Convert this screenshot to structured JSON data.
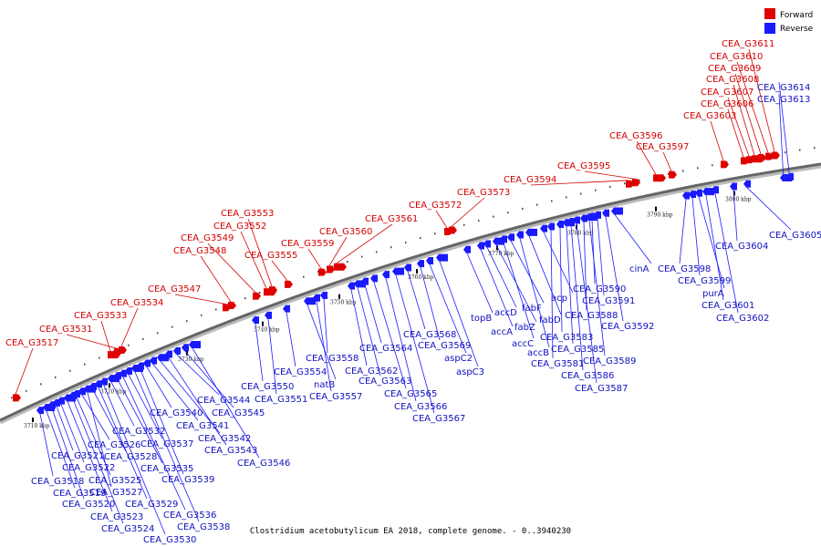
{
  "caption": "Clostridium acetobutylicum EA 2018, complete genome. - 0..3940230",
  "legend": [
    {
      "label": "Forward",
      "color": "#e00000"
    },
    {
      "label": "Reverse",
      "color": "#1a1aff"
    }
  ],
  "colors": {
    "forward": "#e00000",
    "reverse": "#1a1aff",
    "fwd_text": "#d40000",
    "rev_text": "#1010c0",
    "backbone": "#777777"
  },
  "scale_labels": [
    "3710 kbp",
    "3720 kbp",
    "3730 kbp",
    "3740 kbp",
    "3750 kbp",
    "3760 kbp",
    "3770 kbp",
    "3780 kbp",
    "3790 kbp",
    "3800 kbp"
  ],
  "forward_genes": [
    {
      "label": "CEA_G3517"
    },
    {
      "label": "CEA_G3531"
    },
    {
      "label": "CEA_G3533"
    },
    {
      "label": "CEA_G3534"
    },
    {
      "label": "CEA_G3547"
    },
    {
      "label": "CEA_G3548"
    },
    {
      "label": "CEA_G3549"
    },
    {
      "label": "CEA_G3552"
    },
    {
      "label": "CEA_G3553"
    },
    {
      "label": "CEA_G3555"
    },
    {
      "label": "CEA_G3559"
    },
    {
      "label": "CEA_G3560"
    },
    {
      "label": "CEA_G3561"
    },
    {
      "label": "CEA_G3572"
    },
    {
      "label": "CEA_G3573"
    },
    {
      "label": "CEA_G3594"
    },
    {
      "label": "CEA_G3595"
    },
    {
      "label": "CEA_G3596"
    },
    {
      "label": "CEA_G3597"
    },
    {
      "label": "CEA_G3603"
    },
    {
      "label": "CEA_G3606"
    },
    {
      "label": "CEA_G3607"
    },
    {
      "label": "CEA_G3608"
    },
    {
      "label": "CEA_G3609"
    },
    {
      "label": "CEA_G3610"
    },
    {
      "label": "CEA_G3611"
    }
  ],
  "reverse_genes": [
    {
      "label": "CEA_G3518"
    },
    {
      "label": "CEA_G3519"
    },
    {
      "label": "CEA_G3520"
    },
    {
      "label": "CEA_G3521"
    },
    {
      "label": "CEA_G3522"
    },
    {
      "label": "CEA_G3523"
    },
    {
      "label": "CEA_G3524"
    },
    {
      "label": "CEA_G3525"
    },
    {
      "label": "CEA_G3526"
    },
    {
      "label": "CEA_G3527"
    },
    {
      "label": "CEA_G3528"
    },
    {
      "label": "CEA_G3529"
    },
    {
      "label": "CEA_G3530"
    },
    {
      "label": "CEA_G3532"
    },
    {
      "label": "CEA_G3535"
    },
    {
      "label": "CEA_G3536"
    },
    {
      "label": "CEA_G3537"
    },
    {
      "label": "CEA_G3538"
    },
    {
      "label": "CEA_G3539"
    },
    {
      "label": "CEA_G3540"
    },
    {
      "label": "CEA_G3541"
    },
    {
      "label": "CEA_G3542"
    },
    {
      "label": "CEA_G3543"
    },
    {
      "label": "CEA_G3544"
    },
    {
      "label": "CEA_G3545"
    },
    {
      "label": "CEA_G3546"
    },
    {
      "label": "CEA_G3550"
    },
    {
      "label": "CEA_G3551"
    },
    {
      "label": "CEA_G3554"
    },
    {
      "label": "natB"
    },
    {
      "label": "CEA_G3557"
    },
    {
      "label": "CEA_G3558"
    },
    {
      "label": "CEA_G3562"
    },
    {
      "label": "CEA_G3563"
    },
    {
      "label": "CEA_G3564"
    },
    {
      "label": "CEA_G3565"
    },
    {
      "label": "CEA_G3566"
    },
    {
      "label": "CEA_G3567"
    },
    {
      "label": "CEA_G3568"
    },
    {
      "label": "CEA_G3569"
    },
    {
      "label": "aspC2"
    },
    {
      "label": "aspC3"
    },
    {
      "label": "topB"
    },
    {
      "label": "accA"
    },
    {
      "label": "accD"
    },
    {
      "label": "fabZ"
    },
    {
      "label": "accC"
    },
    {
      "label": "fabF"
    },
    {
      "label": "accB"
    },
    {
      "label": "fabD"
    },
    {
      "label": "acp"
    },
    {
      "label": "CEA_G3581"
    },
    {
      "label": "CEA_G3583"
    },
    {
      "label": "CEA_G3585"
    },
    {
      "label": "CEA_G3586"
    },
    {
      "label": "CEA_G3587"
    },
    {
      "label": "CEA_G3588"
    },
    {
      "label": "CEA_G3589"
    },
    {
      "label": "CEA_G3590"
    },
    {
      "label": "CEA_G3591"
    },
    {
      "label": "CEA_G3592"
    },
    {
      "label": "cinA"
    },
    {
      "label": "CEA_G3598"
    },
    {
      "label": "CEA_G3599"
    },
    {
      "label": "purA"
    },
    {
      "label": "CEA_G3601"
    },
    {
      "label": "CEA_G3602"
    },
    {
      "label": "CEA_G3604"
    },
    {
      "label": "CEA_G3605"
    },
    {
      "label": "CEA_G3613"
    },
    {
      "label": "CEA_G3614"
    }
  ]
}
